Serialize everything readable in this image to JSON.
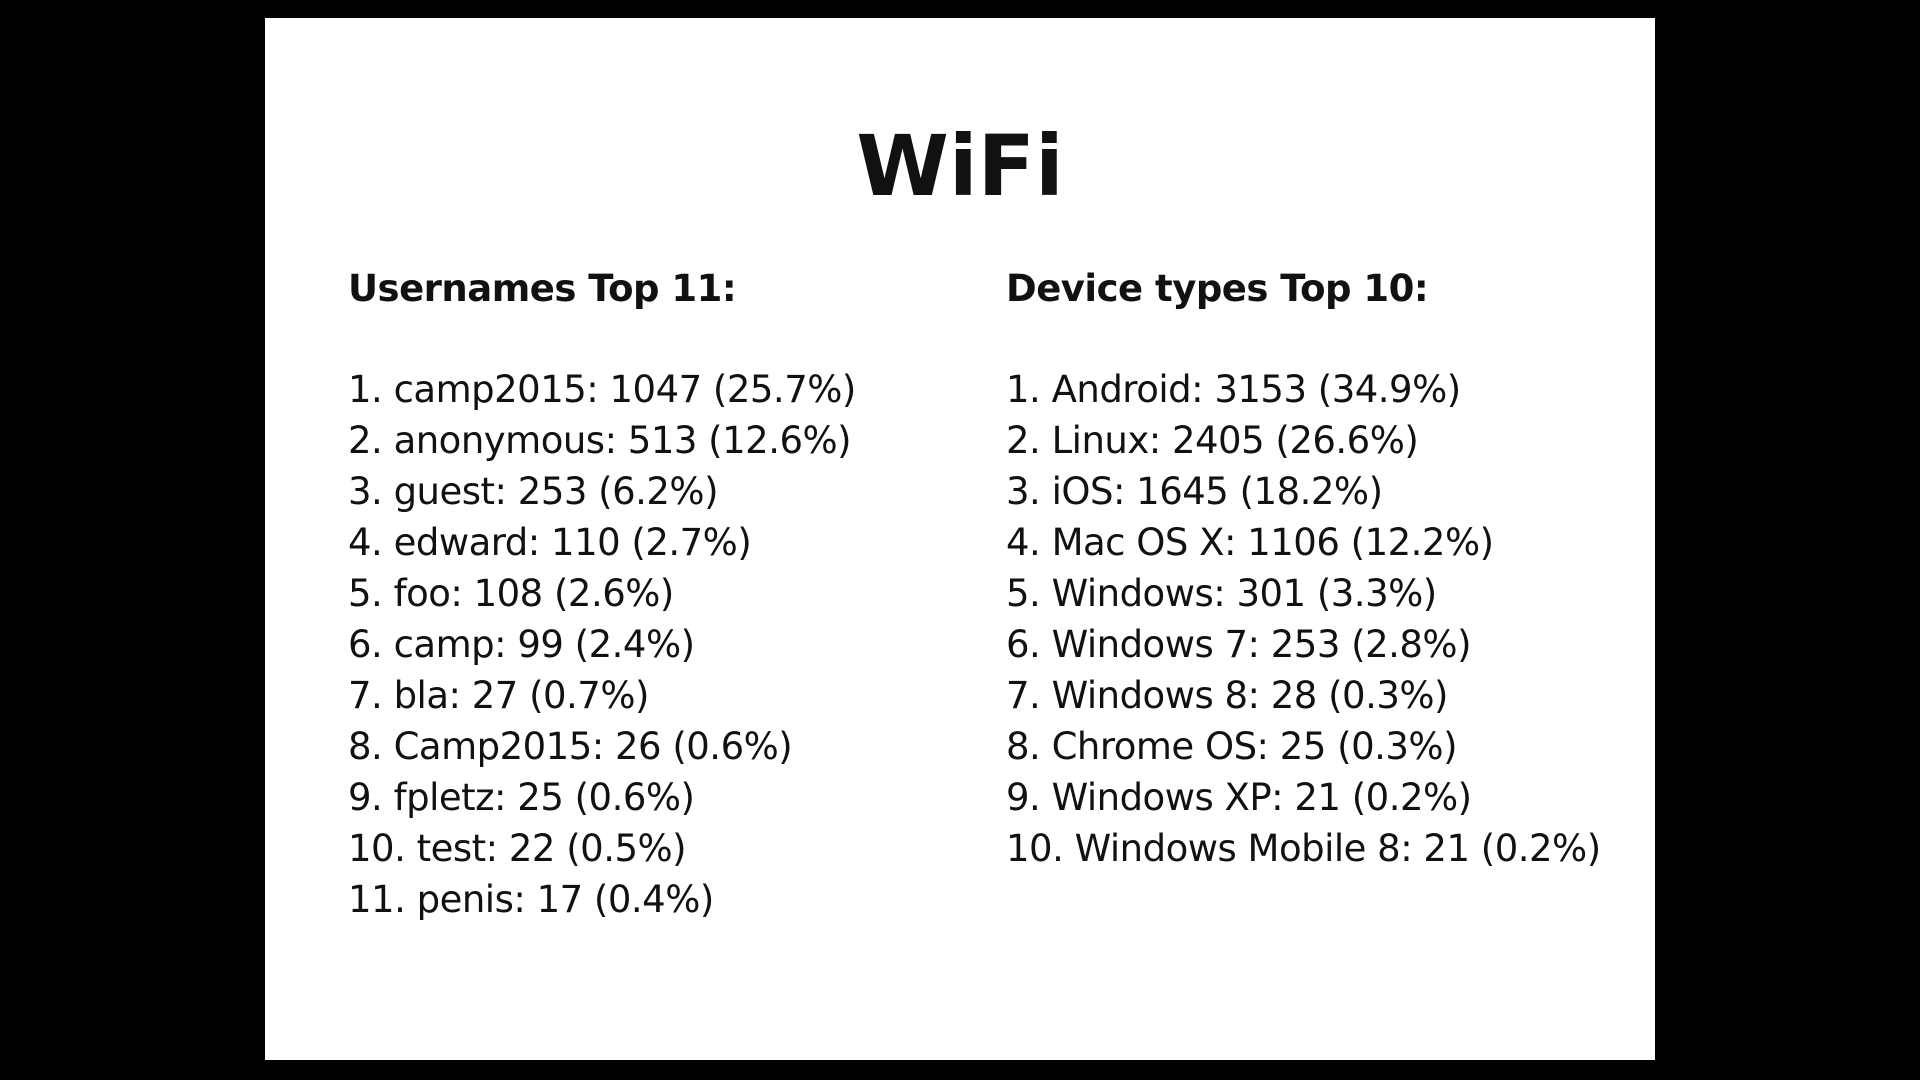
{
  "slide": {
    "title": "WiFi",
    "usernames": {
      "heading": "Usernames Top 11:",
      "items": [
        "1. camp2015: 1047 (25.7%)",
        "2. anonymous: 513 (12.6%)",
        "3. guest: 253 (6.2%)",
        "4. edward: 110 (2.7%)",
        "5. foo: 108 (2.6%)",
        "6. camp: 99 (2.4%)",
        "7. bla: 27 (0.7%)",
        "8. Camp2015: 26 (0.6%)",
        "9. fpletz: 25 (0.6%)",
        "10. test: 22 (0.5%)",
        "11. penis: 17 (0.4%)"
      ]
    },
    "devices": {
      "heading": "Device types Top 10:",
      "items": [
        "1. Android: 3153 (34.9%)",
        "2. Linux: 2405 (26.6%)",
        "3. iOS: 1645 (18.2%)",
        "4. Mac OS X: 1106 (12.2%)",
        "5. Windows: 301 (3.3%)",
        "6. Windows 7: 253 (2.8%)",
        "7. Windows 8: 28 (0.3%)",
        "8. Chrome OS: 25 (0.3%)",
        "9. Windows XP: 21 (0.2%)",
        "10. Windows Mobile 8: 21 (0.2%)"
      ]
    }
  }
}
